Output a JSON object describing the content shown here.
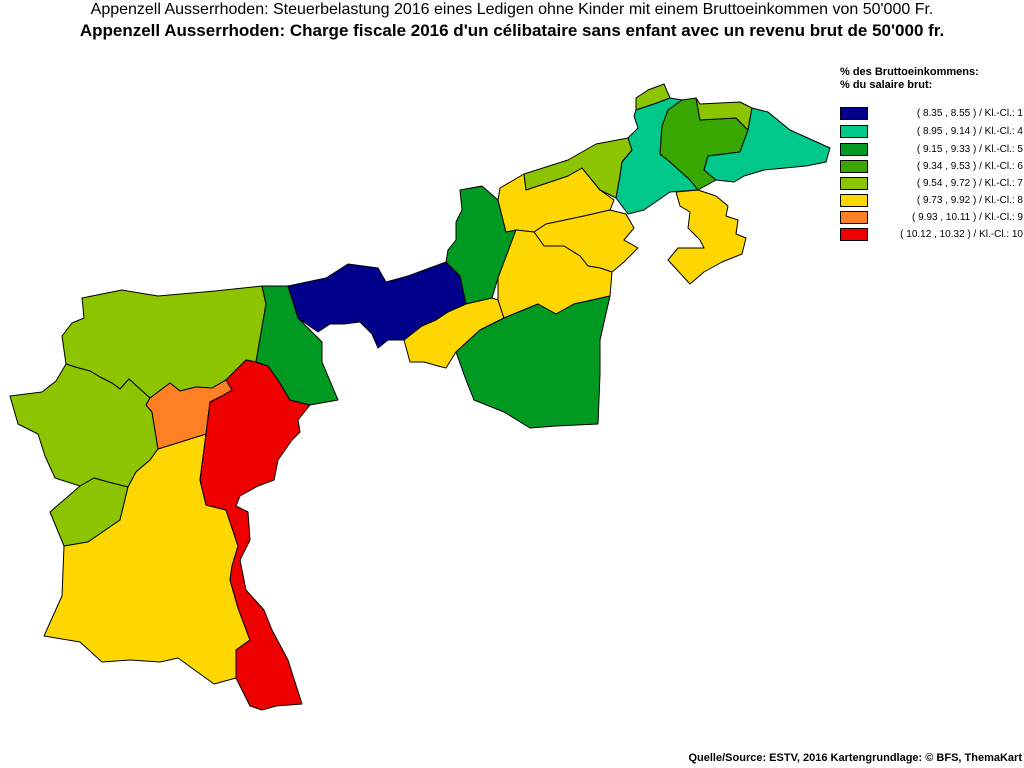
{
  "title_de": "Appenzell Ausserrhoden: Steuerbelastung 2016 eines Ledigen ohne Kinder mit einem Bruttoeinkommen von 50'000 Fr.",
  "title_fr": "Appenzell Ausserrhoden: Charge fiscale 2016 d'un célibataire sans enfant avec un revenu brut de 50'000 fr.",
  "legend": {
    "heading_de": "% des Bruttoeinkommens:",
    "heading_fr": "% du salaire brut:",
    "classes": [
      {
        "label": "( 8.35 , 8.55 ) / Kl.-Cl.: 1",
        "color": "#00008b"
      },
      {
        "label": "( 8.95 , 9.14 ) / Kl.-Cl.: 4",
        "color": "#00c88a"
      },
      {
        "label": "( 9.15 , 9.33 ) / Kl.-Cl.: 5",
        "color": "#009a22"
      },
      {
        "label": "( 9.34 , 9.53 ) / Kl.-Cl.: 6",
        "color": "#38a800"
      },
      {
        "label": "( 9.54 , 9.72 ) / Kl.-Cl.: 7",
        "color": "#8cc400"
      },
      {
        "label": "( 9.73 , 9.92 ) / Kl.-Cl.: 8",
        "color": "#ffd700"
      },
      {
        "label": "( 9.93 , 10.11 ) / Kl.-Cl.: 9",
        "color": "#ff7f24"
      },
      {
        "label": "( 10.12 , 10.32 ) / Kl.-Cl.: 10",
        "color": "#ee0000"
      }
    ]
  },
  "municipalities_class": {
    "hinterland-northwest": 7,
    "hinterland-west": 7,
    "hinterland-southwest": 7,
    "hinterland-south": 8,
    "orange-unit": 9,
    "red-strip": 10,
    "green-middle-west": 5,
    "dark-blue-unit": 1,
    "green-middle-north": 5,
    "yellow-middle": 8,
    "yellow-center-north": 8,
    "yellow-center-east": 8,
    "yellow-center-south": 8,
    "green-southeast": 5,
    "lime-northeast-strip": 7,
    "lime-north-tip": 7,
    "teal-north": 4,
    "green-northeast": 6,
    "lime-northeast-small": 7,
    "teal-east": 4,
    "yellow-east-exclave": 8
  },
  "source": "Quelle/Source: ESTV, 2016 Kartengrundlage: © BFS, ThemaKart"
}
